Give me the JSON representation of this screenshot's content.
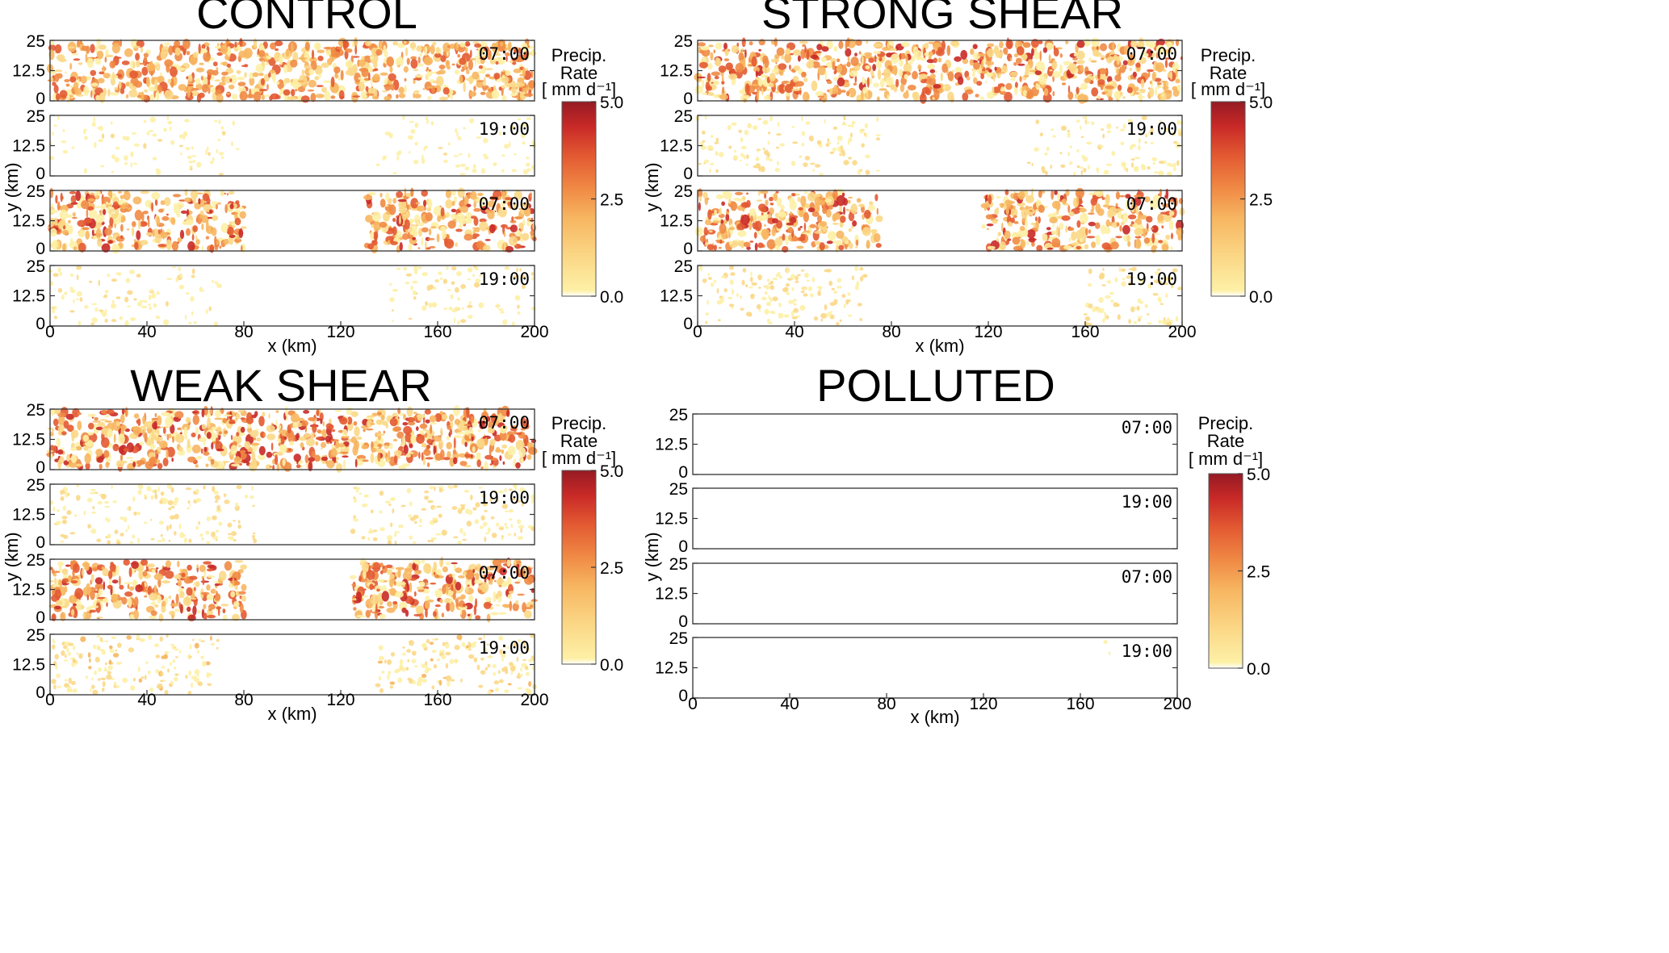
{
  "chart_data": [
    {
      "type": "heatmap",
      "title": "CONTROL",
      "xlabel": "x (km)",
      "ylabel": "y (km)",
      "x_ticks": [
        "0",
        "40",
        "80",
        "120",
        "160",
        "200"
      ],
      "y_ticks": [
        "0",
        "12.5",
        "25"
      ],
      "xlim": [
        0,
        200
      ],
      "ylim": [
        0,
        25
      ],
      "variable": "precipitation rate",
      "colorbar": {
        "title": [
          "Precip.",
          "Rate",
          "[ mm d⁻¹]"
        ],
        "ticks": [
          "5.0",
          "2.5",
          "0.0"
        ],
        "range": [
          0,
          5
        ]
      },
      "panels": [
        {
          "time": "07:00",
          "rain_bands": [
            [
              0,
              200
            ]
          ],
          "intensity": 0.55
        },
        {
          "time": "19:00",
          "rain_bands": [
            [
              0,
              80
            ],
            [
              135,
              200
            ]
          ],
          "intensity": 0.12
        },
        {
          "time": "07:00",
          "rain_bands": [
            [
              0,
              80
            ],
            [
              130,
              200
            ]
          ],
          "intensity": 0.6
        },
        {
          "time": "19:00",
          "rain_bands": [
            [
              0,
              70
            ],
            [
              140,
              200
            ]
          ],
          "intensity": 0.15
        }
      ]
    },
    {
      "type": "heatmap",
      "title": "STRONG SHEAR",
      "xlabel": "x (km)",
      "ylabel": "y (km)",
      "x_ticks": [
        "0",
        "40",
        "80",
        "120",
        "160",
        "200"
      ],
      "y_ticks": [
        "0",
        "12.5",
        "25"
      ],
      "xlim": [
        0,
        200
      ],
      "ylim": [
        0,
        25
      ],
      "variable": "precipitation rate",
      "colorbar": {
        "title": [
          "Precip.",
          "Rate",
          "[ mm d⁻¹]"
        ],
        "ticks": [
          "5.0",
          "2.5",
          "0.0"
        ],
        "range": [
          0,
          5
        ]
      },
      "panels": [
        {
          "time": "07:00",
          "rain_bands": [
            [
              0,
              200
            ]
          ],
          "intensity": 0.6
        },
        {
          "time": "19:00",
          "rain_bands": [
            [
              0,
              75
            ],
            [
              135,
              200
            ]
          ],
          "intensity": 0.18
        },
        {
          "time": "07:00",
          "rain_bands": [
            [
              0,
              75
            ],
            [
              118,
              200
            ]
          ],
          "intensity": 0.6
        },
        {
          "time": "19:00",
          "rain_bands": [
            [
              0,
              70
            ],
            [
              160,
              200
            ]
          ],
          "intensity": 0.22
        }
      ]
    },
    {
      "type": "heatmap",
      "title": "WEAK SHEAR",
      "xlabel": "x (km)",
      "ylabel": "y (km)",
      "x_ticks": [
        "0",
        "40",
        "80",
        "120",
        "160",
        "200"
      ],
      "y_ticks": [
        "0",
        "12.5",
        "25"
      ],
      "xlim": [
        0,
        200
      ],
      "ylim": [
        0,
        25
      ],
      "variable": "precipitation rate",
      "colorbar": {
        "title": [
          "Precip.",
          "Rate",
          "[ mm d⁻¹]"
        ],
        "ticks": [
          "5.0",
          "2.5",
          "0.0"
        ],
        "range": [
          0,
          5
        ]
      },
      "panels": [
        {
          "time": "07:00",
          "rain_bands": [
            [
              0,
              200
            ]
          ],
          "intensity": 0.65
        },
        {
          "time": "19:00",
          "rain_bands": [
            [
              0,
              85
            ],
            [
              125,
              200
            ]
          ],
          "intensity": 0.2
        },
        {
          "time": "07:00",
          "rain_bands": [
            [
              0,
              80
            ],
            [
              125,
              200
            ]
          ],
          "intensity": 0.6
        },
        {
          "time": "19:00",
          "rain_bands": [
            [
              0,
              70
            ],
            [
              135,
              200
            ]
          ],
          "intensity": 0.25
        }
      ]
    },
    {
      "type": "heatmap",
      "title": "POLLUTED",
      "xlabel": "x (km)",
      "ylabel": "y (km)",
      "x_ticks": [
        "0",
        "40",
        "80",
        "120",
        "160",
        "200"
      ],
      "y_ticks": [
        "0",
        "12.5",
        "25"
      ],
      "xlim": [
        0,
        200
      ],
      "ylim": [
        0,
        25
      ],
      "variable": "precipitation rate",
      "colorbar": {
        "title": [
          "Precip.",
          "Rate",
          "[ mm d⁻¹]"
        ],
        "ticks": [
          "5.0",
          "2.5",
          "0.0"
        ],
        "range": [
          0,
          5
        ]
      },
      "panels": [
        {
          "time": "07:00",
          "rain_bands": [],
          "intensity": 0
        },
        {
          "time": "19:00",
          "rain_bands": [],
          "intensity": 0
        },
        {
          "time": "07:00",
          "rain_bands": [],
          "intensity": 0
        },
        {
          "time": "19:00",
          "rain_bands": [
            [
              168,
              173
            ]
          ],
          "intensity": 0.03
        }
      ]
    }
  ],
  "colors": {
    "colormap": [
      "#ffffff",
      "#fdf0a6",
      "#fbd887",
      "#f7b661",
      "#f08b45",
      "#e35a32",
      "#c92a27",
      "#961a24"
    ]
  }
}
